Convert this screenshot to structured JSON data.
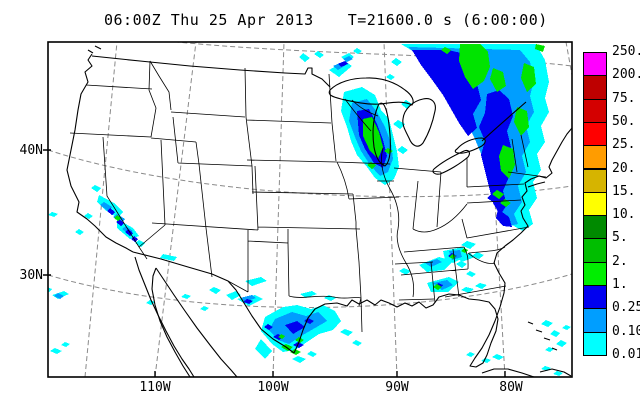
{
  "title": {
    "datetime": "06:00Z Thu 25 Apr 2013",
    "timer": "T=21600.0 s (6:00:00)"
  },
  "axes": {
    "lat_labels": [
      "40N",
      "30N"
    ],
    "lon_labels": [
      "110W",
      "100W",
      "90W",
      "80W"
    ]
  },
  "colorbar": {
    "tick_labels": [
      "250.",
      "200.",
      "75.",
      "50.",
      "25.",
      "20.",
      "15.",
      "10.",
      "5.",
      "2.",
      "1.",
      "0.25",
      "0.10",
      "0.01"
    ],
    "cell_colors_top_to_bottom": [
      "#ff00ff",
      "#be0000",
      "#d40000",
      "#ff0000",
      "#ff9c00",
      "#d6b400",
      "#ffff00",
      "#008a00",
      "#00be00",
      "#00ee00",
      "#0000f0",
      "#009eff",
      "#00ffff"
    ]
  },
  "precip_palette": {
    "trace": "#00ffff",
    "light": "#009eff",
    "moderate": "#0000f0",
    "heavy": "#00e400"
  },
  "precip_regions": [
    "Wisconsin / Lake Michigan cluster with heavy cores",
    "Large Quebec - Ontario - New England system with heavy cores",
    "Mid-Atlantic coastal band (New Jersey to Virginia)",
    "Texas Gulf Coast scattered cells with heavy specks",
    "Lower Mississippi / Gulf of Mexico patch",
    "Georgia - Alabama small cell",
    "California Sierra Nevada light showers",
    "Florida Straits / Bahamas specks"
  ]
}
